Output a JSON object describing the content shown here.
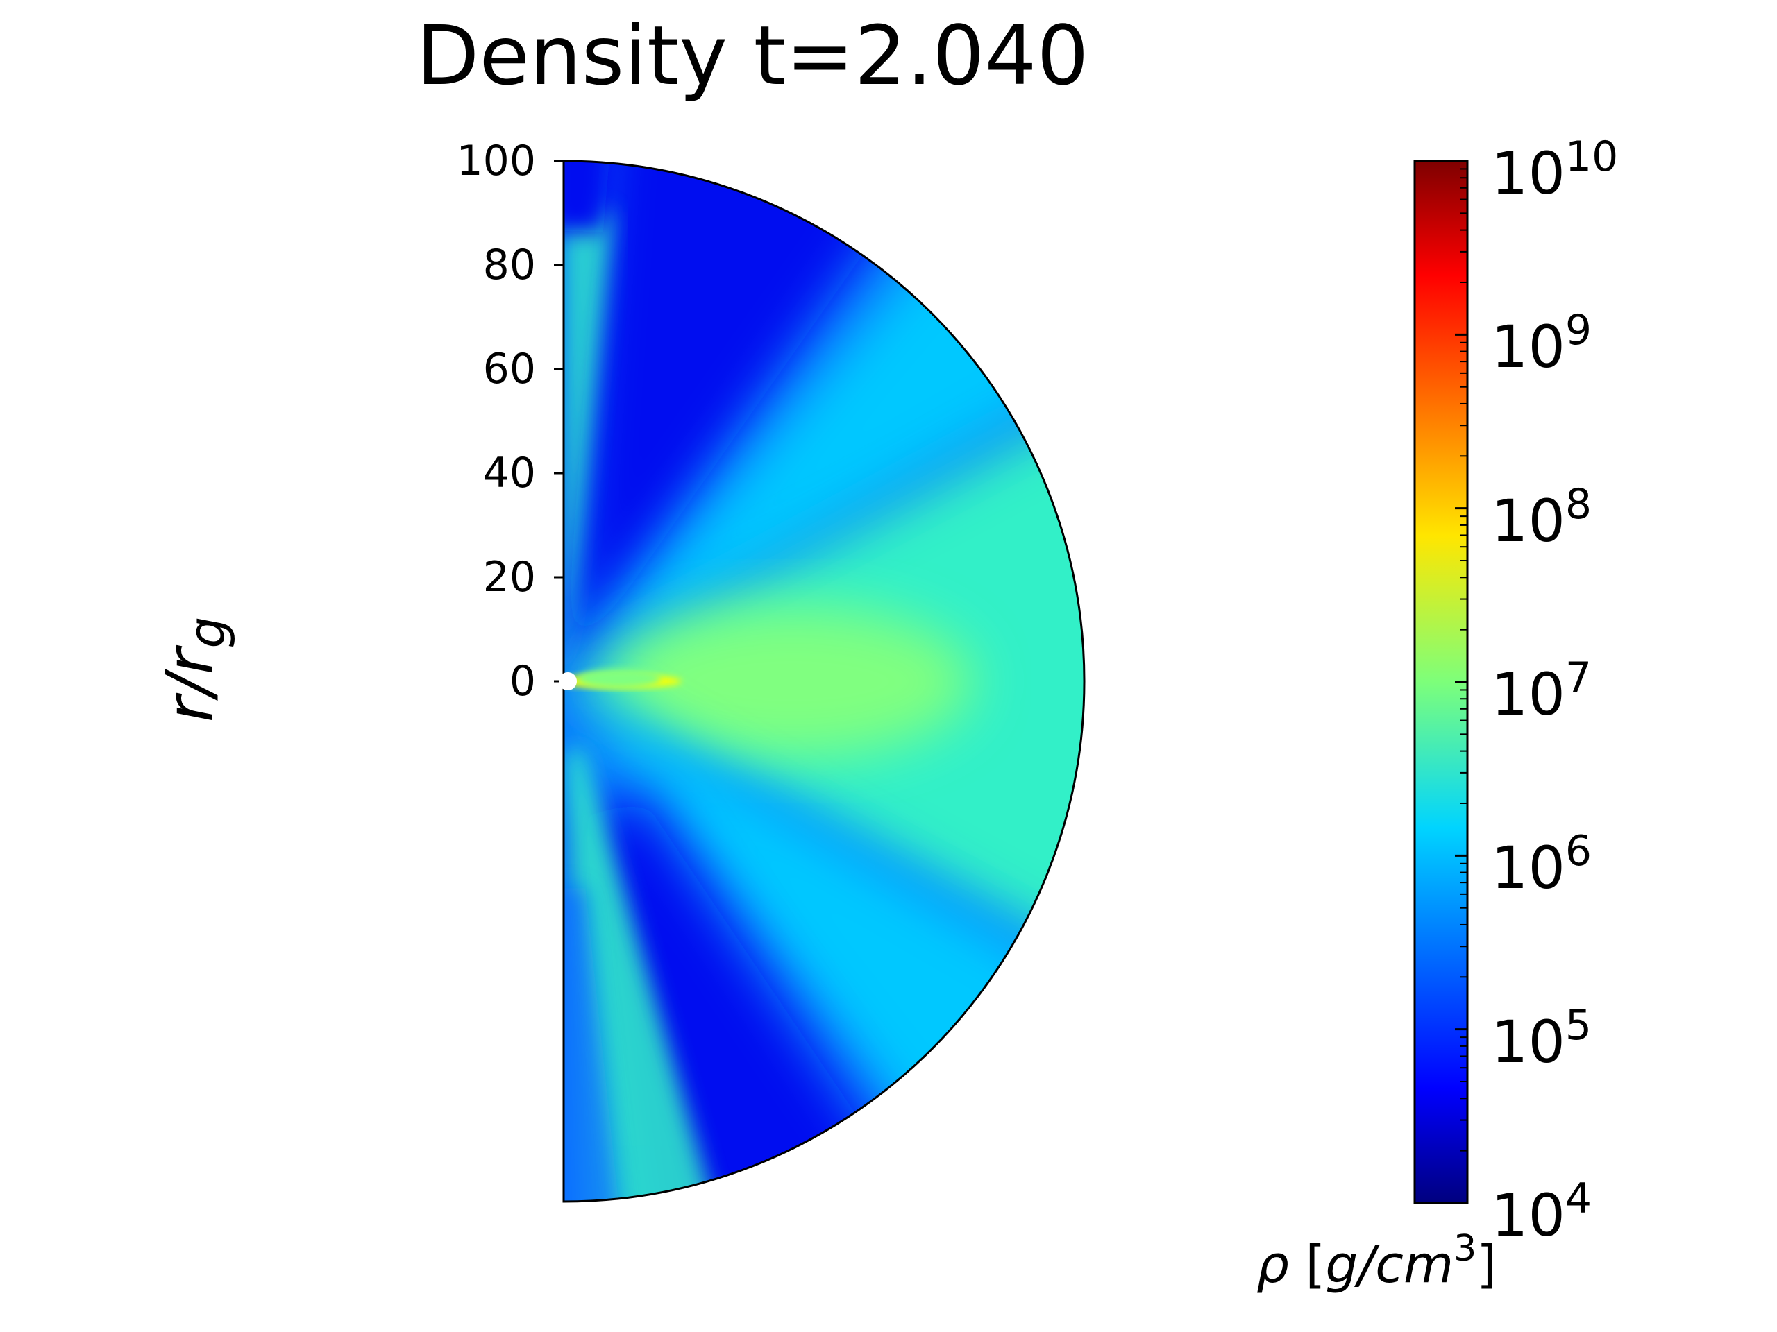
{
  "chart_data": {
    "type": "heatmap",
    "title": "Density t=2.040",
    "ylabel": {
      "main": "r/r",
      "sub": "g"
    },
    "y_ticks": [
      "100",
      "80",
      "60",
      "40",
      "20",
      "0"
    ],
    "y_tick_values": [
      100,
      80,
      60,
      40,
      20,
      0
    ],
    "ylim": [
      -100,
      100
    ],
    "domain_shape": "half-disk (right half), radius 100",
    "colormap": "jet",
    "colorbar": {
      "scale": "log",
      "range": [
        10000,
        10000000000
      ],
      "ticks": [
        {
          "base": "10",
          "exp": "4",
          "value": 10000
        },
        {
          "base": "10",
          "exp": "5",
          "value": 100000
        },
        {
          "base": "10",
          "exp": "6",
          "value": 1000000
        },
        {
          "base": "10",
          "exp": "7",
          "value": 10000000
        },
        {
          "base": "10",
          "exp": "8",
          "value": 100000000
        },
        {
          "base": "10",
          "exp": "9",
          "value": 1000000000
        },
        {
          "base": "10",
          "exp": "10",
          "value": 10000000000
        }
      ],
      "label": {
        "symbol": "ρ",
        "open": " [",
        "unit": "g/cm",
        "exp": "3",
        "close": "]"
      }
    },
    "colors": {
      "low": "#00007f",
      "dark_blue": "#0010f0",
      "blue": "#0a70ff",
      "cyan": "#00c8ff",
      "cyan_green": "#30f0c8",
      "green": "#80ff80",
      "yellow": "#ffff00",
      "orange": "#ff8000",
      "red": "#ff0000",
      "high": "#7f0000"
    }
  }
}
